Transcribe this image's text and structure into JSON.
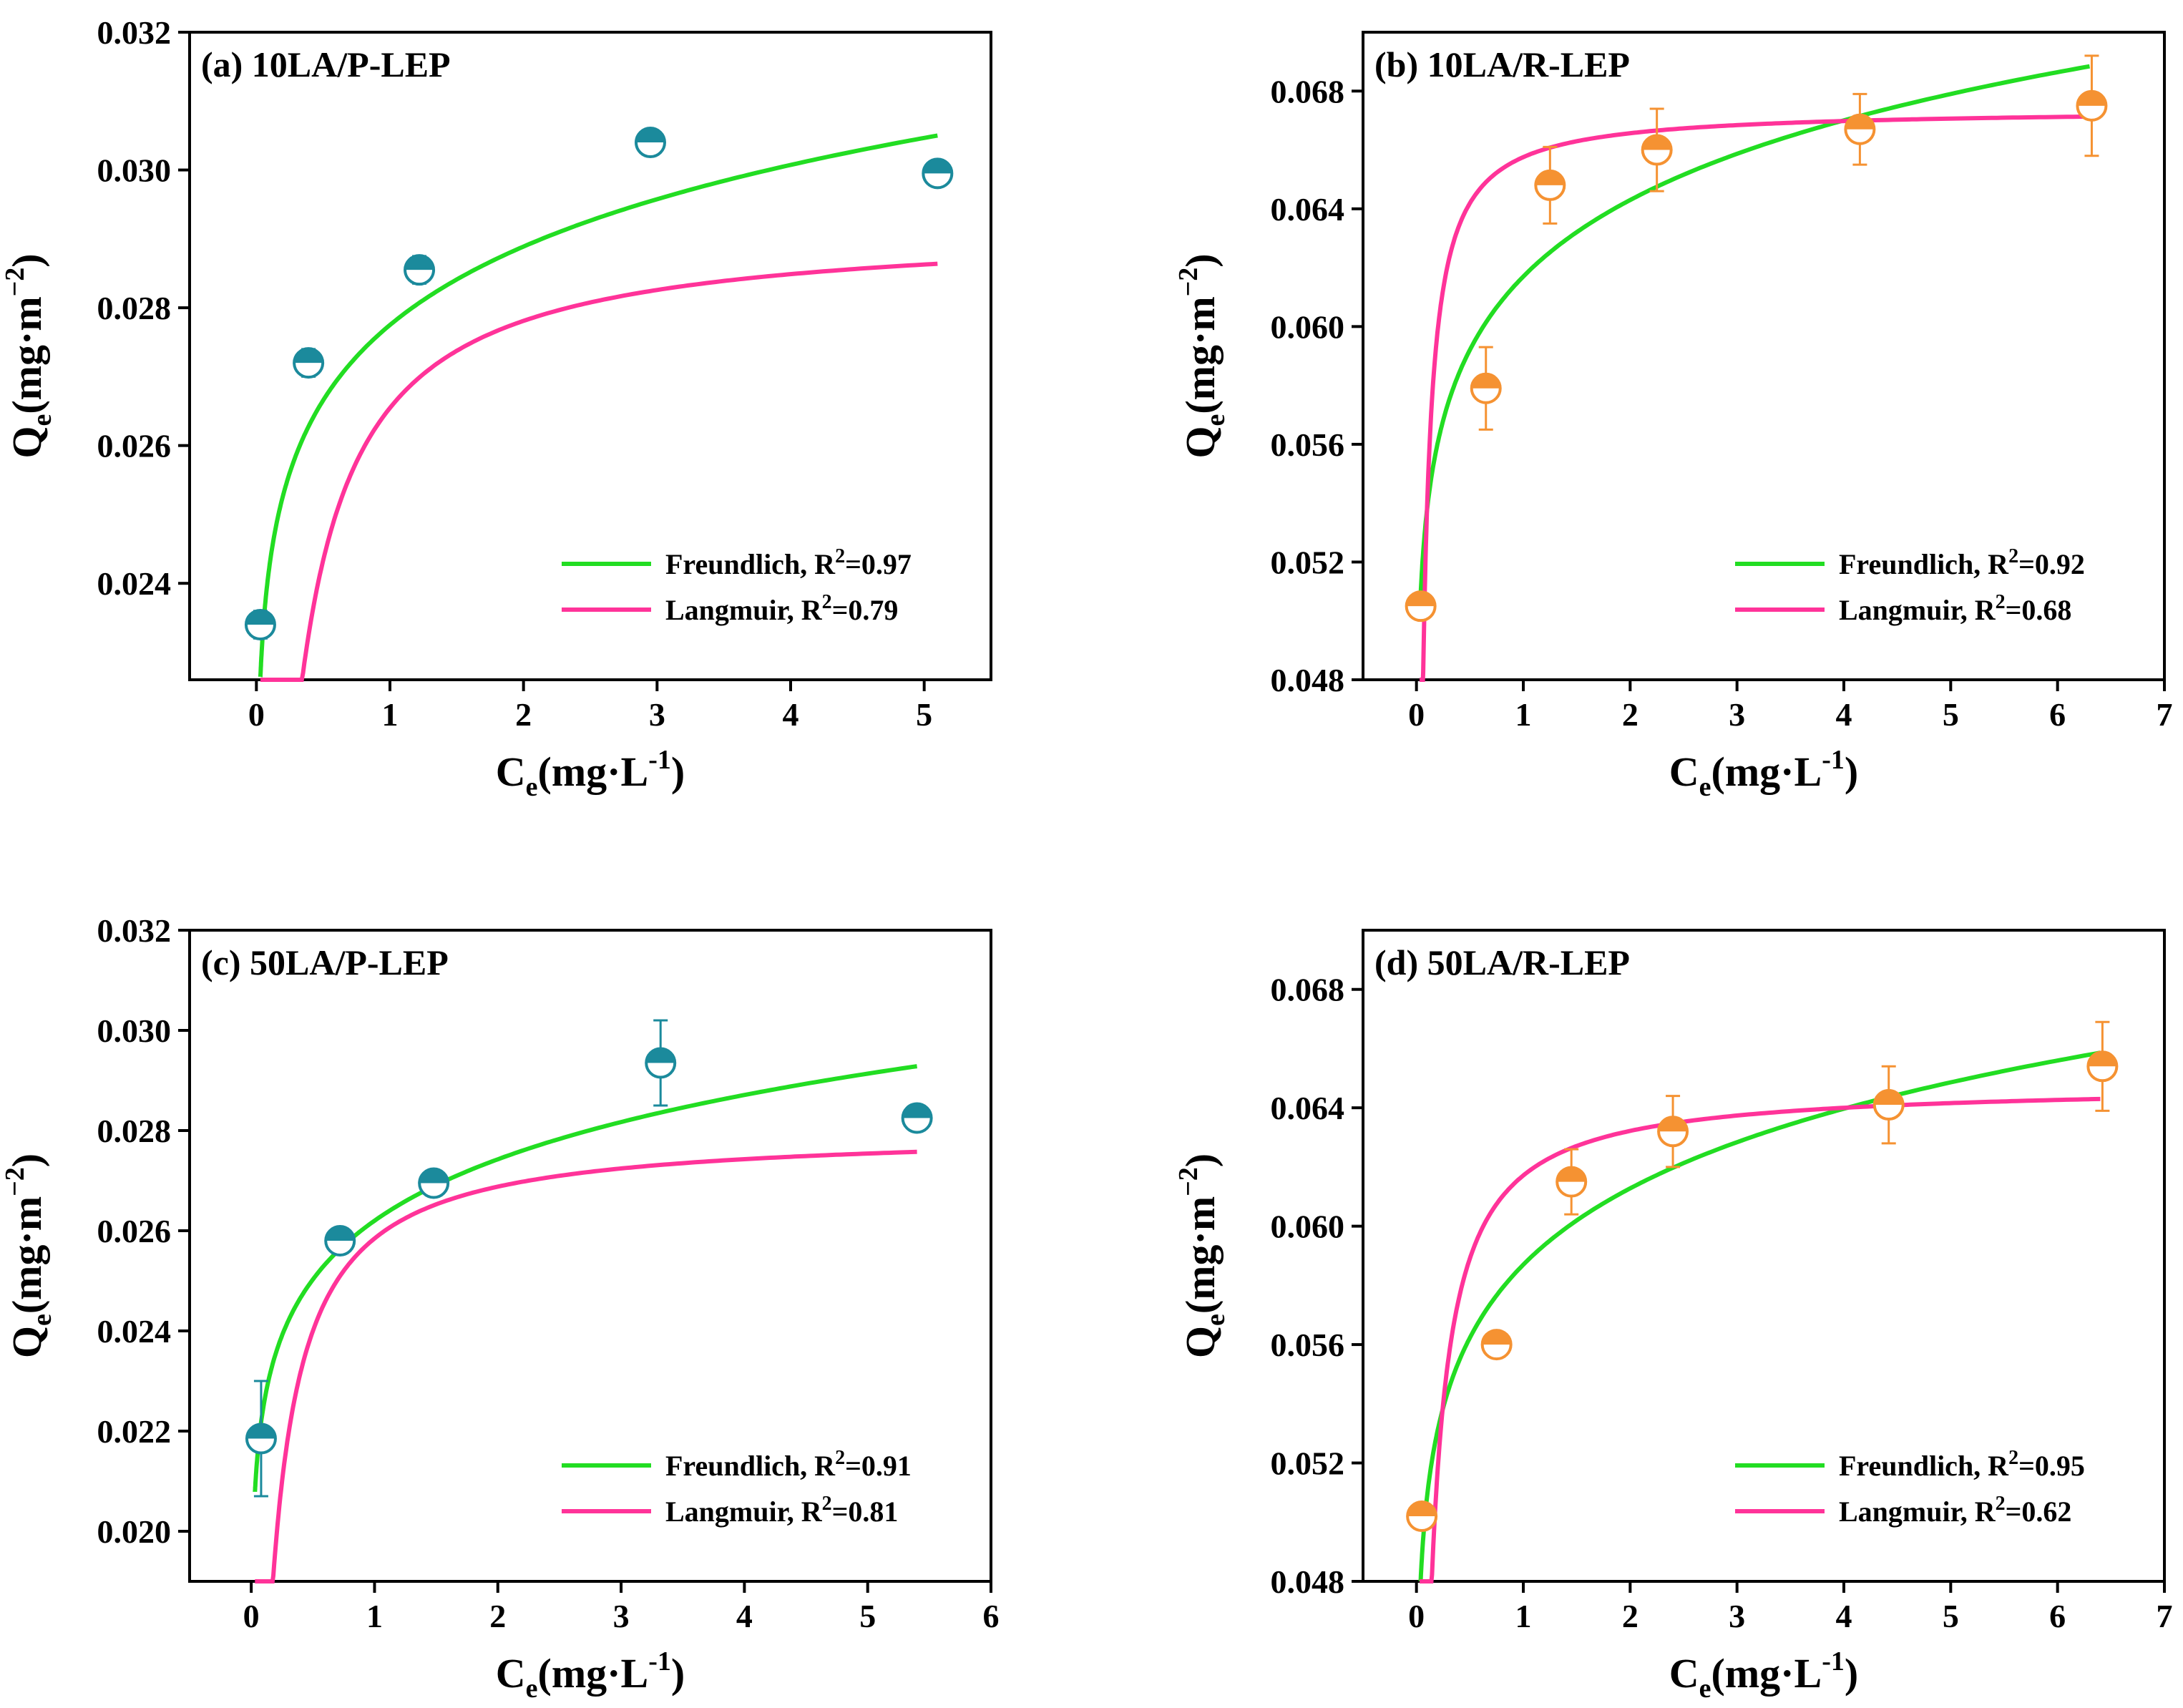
{
  "chart_data": [
    {
      "id": "a",
      "type": "scatter",
      "title": "(a) 10LA/P-LEP",
      "xlabel_main": "C",
      "xlabel_sub": "e",
      "xlabel_rest": "(mg·L",
      "xlabel_sup": "-1",
      "xlabel_close": ")",
      "ylabel_main": "Q",
      "ylabel_sub": "e",
      "ylabel_rest": "(mg·m",
      "ylabel_sup": "−2",
      "ylabel_close": ")",
      "xlim": [
        -0.5,
        5.5
      ],
      "ylim": [
        0.0226,
        0.032
      ],
      "xticks": [
        0,
        1,
        2,
        3,
        4,
        5
      ],
      "xtick_labels": [
        "0",
        "1",
        "2",
        "3",
        "4",
        "5"
      ],
      "yticks": [
        0.024,
        0.026,
        0.028,
        0.03,
        0.032
      ],
      "ytick_labels": [
        "0.024",
        "0.026",
        "0.028",
        "0.030",
        "0.032"
      ],
      "marker_color": "#1b8a9c",
      "points": [
        {
          "x": 0.03,
          "y": 0.0234,
          "err": 0.0002
        },
        {
          "x": 0.39,
          "y": 0.0272,
          "err": 0.0002
        },
        {
          "x": 1.22,
          "y": 0.02855,
          "err": 0.0002
        },
        {
          "x": 2.95,
          "y": 0.0304,
          "err": 0.0001
        },
        {
          "x": 5.1,
          "y": 0.02995,
          "err": 0.0001
        }
      ],
      "freundlich": {
        "kf": 0.02775,
        "n_inv": 0.058
      },
      "langmuir": {
        "qm": 0.0292,
        "kl": 10.0
      },
      "curve_xmax": 5.1,
      "legend": [
        {
          "label": "Freundlich, R",
          "sup": "2",
          "tail": "=0.97",
          "color": "#22dd22"
        },
        {
          "label": "Langmuir, R",
          "sup": "2",
          "tail": "=0.79",
          "color": "#ff3399"
        }
      ]
    },
    {
      "id": "b",
      "type": "scatter",
      "title": "(b) 10LA/R-LEP",
      "xlabel_main": "C",
      "xlabel_sub": "e",
      "xlabel_rest": "(mg·L",
      "xlabel_sup": "-1",
      "xlabel_close": ")",
      "ylabel_main": "Q",
      "ylabel_sub": "e",
      "ylabel_rest": "(mg·m",
      "ylabel_sup": "−2",
      "ylabel_close": ")",
      "xlim": [
        -0.5,
        7.0
      ],
      "ylim": [
        0.048,
        0.07
      ],
      "xticks": [
        0,
        1,
        2,
        3,
        4,
        5,
        6,
        7
      ],
      "xtick_labels": [
        "0",
        "1",
        "2",
        "3",
        "4",
        "5",
        "6",
        "7"
      ],
      "yticks": [
        0.048,
        0.052,
        0.056,
        0.06,
        0.064,
        0.068
      ],
      "ytick_labels": [
        "0.048",
        "0.052",
        "0.056",
        "0.060",
        "0.064",
        "0.068"
      ],
      "marker_color": "#f59232",
      "points": [
        {
          "x": 0.04,
          "y": 0.0505,
          "err": 0.0003
        },
        {
          "x": 0.65,
          "y": 0.0579,
          "err": 0.0014
        },
        {
          "x": 1.25,
          "y": 0.0648,
          "err": 0.0013
        },
        {
          "x": 2.25,
          "y": 0.066,
          "err": 0.0014
        },
        {
          "x": 4.15,
          "y": 0.0667,
          "err": 0.0012
        },
        {
          "x": 6.32,
          "y": 0.0675,
          "err": 0.0017
        }
      ],
      "freundlich": {
        "kf": 0.0617,
        "n_inv": 0.0595
      },
      "langmuir": {
        "qm": 0.0674,
        "kl": 40.0
      },
      "curve_xmax": 6.3,
      "legend": [
        {
          "label": "Freundlich, R",
          "sup": "2",
          "tail": "=0.92",
          "color": "#22dd22"
        },
        {
          "label": "Langmuir, R",
          "sup": "2",
          "tail": "=0.68",
          "color": "#ff3399"
        }
      ]
    },
    {
      "id": "c",
      "type": "scatter",
      "title": "(c) 50LA/P-LEP",
      "xlabel_main": "C",
      "xlabel_sub": "e",
      "xlabel_rest": "(mg·L",
      "xlabel_sup": "-1",
      "xlabel_close": ")",
      "ylabel_main": "Q",
      "ylabel_sub": "e",
      "ylabel_rest": "(mg·m",
      "ylabel_sup": "−2",
      "ylabel_close": ")",
      "xlim": [
        -0.5,
        6.0
      ],
      "ylim": [
        0.019,
        0.032
      ],
      "xticks": [
        0,
        1,
        2,
        3,
        4,
        5,
        6
      ],
      "xtick_labels": [
        "0",
        "1",
        "2",
        "3",
        "4",
        "5",
        "6"
      ],
      "yticks": [
        0.02,
        0.022,
        0.024,
        0.026,
        0.028,
        0.03,
        0.032
      ],
      "ytick_labels": [
        "0.020",
        "0.022",
        "0.024",
        "0.026",
        "0.028",
        "0.030",
        "0.032"
      ],
      "marker_color": "#1b8a9c",
      "points": [
        {
          "x": 0.08,
          "y": 0.02185,
          "err": 0.00115
        },
        {
          "x": 0.72,
          "y": 0.0258,
          "err": 0.0002
        },
        {
          "x": 1.48,
          "y": 0.02695,
          "err": 0.0001
        },
        {
          "x": 3.32,
          "y": 0.02935,
          "err": 0.00085
        },
        {
          "x": 5.4,
          "y": 0.02825,
          "err": 0.0001
        }
      ],
      "freundlich": {
        "kf": 0.0262,
        "n_inv": 0.066
      },
      "langmuir": {
        "qm": 0.028,
        "kl": 12.0
      },
      "curve_xmax": 5.4,
      "legend": [
        {
          "label": "Freundlich, R",
          "sup": "2",
          "tail": "=0.91",
          "color": "#22dd22"
        },
        {
          "label": "Langmuir, R",
          "sup": "2",
          "tail": "=0.81",
          "color": "#ff3399"
        }
      ]
    },
    {
      "id": "d",
      "type": "scatter",
      "title": "(d) 50LA/R-LEP",
      "xlabel_main": "C",
      "xlabel_sub": "e",
      "xlabel_rest": "(mg·L",
      "xlabel_sup": "-1",
      "xlabel_close": ")",
      "ylabel_main": "Q",
      "ylabel_sub": "e",
      "ylabel_rest": "(mg·m",
      "ylabel_sup": "−2",
      "ylabel_close": ")",
      "xlim": [
        -0.5,
        7.0
      ],
      "ylim": [
        0.048,
        0.07
      ],
      "xticks": [
        0,
        1,
        2,
        3,
        4,
        5,
        6,
        7
      ],
      "xtick_labels": [
        "0",
        "1",
        "2",
        "3",
        "4",
        "5",
        "6",
        "7"
      ],
      "yticks": [
        0.048,
        0.052,
        0.056,
        0.06,
        0.064,
        0.068
      ],
      "ytick_labels": [
        "0.048",
        "0.052",
        "0.056",
        "0.060",
        "0.064",
        "0.068"
      ],
      "marker_color": "#f59232",
      "points": [
        {
          "x": 0.05,
          "y": 0.0502,
          "err": 0.0003
        },
        {
          "x": 0.75,
          "y": 0.056,
          "err": 0.0003
        },
        {
          "x": 1.45,
          "y": 0.0615,
          "err": 0.0011
        },
        {
          "x": 2.4,
          "y": 0.0632,
          "err": 0.0012
        },
        {
          "x": 4.42,
          "y": 0.0641,
          "err": 0.0013
        },
        {
          "x": 6.42,
          "y": 0.0654,
          "err": 0.0015
        }
      ],
      "freundlich": {
        "kf": 0.0587,
        "n_inv": 0.062
      },
      "langmuir": {
        "qm": 0.0648,
        "kl": 20.0
      },
      "curve_xmax": 6.4,
      "legend": [
        {
          "label": "Freundlich, R",
          "sup": "2",
          "tail": "=0.95",
          "color": "#22dd22"
        },
        {
          "label": "Langmuir, R",
          "sup": "2",
          "tail": "=0.62",
          "color": "#ff3399"
        }
      ]
    }
  ]
}
